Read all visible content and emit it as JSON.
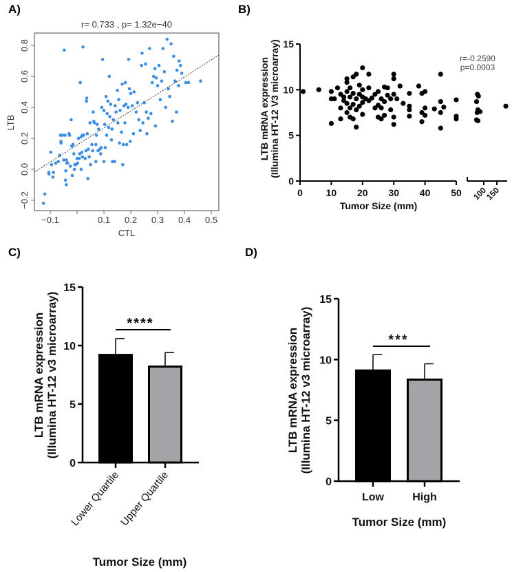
{
  "chart_data": [
    {
      "panel": "A)",
      "type": "scatter",
      "title": "r= 0.733 , p= 1.32e−40",
      "xlabel": "CTL",
      "ylabel": "LTB",
      "xlim": [
        -0.159,
        0.528
      ],
      "ylim": [
        -0.267,
        0.88
      ],
      "x_ticks": [
        -0.1,
        0,
        0.1,
        0.2,
        0.3,
        0.4,
        0.5
      ],
      "x_tick_labels": [
        "−0.1",
        "",
        "0.1",
        "0.2",
        "0.3",
        "0.4",
        "0.5"
      ],
      "y_ticks": [
        -0.2,
        0,
        0.2,
        0.4,
        0.6,
        0.8
      ],
      "y_tick_labels": [
        "−0.2",
        "0.0",
        "0.2",
        "0.4",
        "0.6",
        "0.8"
      ],
      "point_color": "#3a8ee6",
      "fit_line": {
        "intercept": 0.157,
        "slope": 1.1,
        "style": "dotted"
      },
      "grid": false,
      "points": [
        [
          -0.125,
          -0.22
        ],
        [
          -0.12,
          -0.16
        ],
        [
          -0.105,
          -0.03
        ],
        [
          -0.105,
          -0.02
        ],
        [
          -0.098,
          0.11
        ],
        [
          -0.095,
          0.03
        ],
        [
          -0.09,
          -0.05
        ],
        [
          -0.088,
          -0.02
        ],
        [
          -0.08,
          0.04
        ],
        [
          -0.07,
          0.05
        ],
        [
          -0.065,
          0.09
        ],
        [
          -0.062,
          0.22
        ],
        [
          -0.06,
          0.18
        ],
        [
          -0.06,
          0.17
        ],
        [
          -0.055,
          0.22
        ],
        [
          -0.05,
          0.06
        ],
        [
          -0.048,
          0.77
        ],
        [
          -0.045,
          0.22
        ],
        [
          -0.043,
          -0.07
        ],
        [
          -0.042,
          -0.01
        ],
        [
          -0.04,
          -0.1
        ],
        [
          -0.04,
          0.06
        ],
        [
          -0.038,
          0.04
        ],
        [
          -0.035,
          0.04
        ],
        [
          -0.03,
          0.23
        ],
        [
          -0.028,
          0.22
        ],
        [
          -0.025,
          0.02
        ],
        [
          -0.022,
          0.32
        ],
        [
          -0.02,
          0.15
        ],
        [
          -0.018,
          -0.04
        ],
        [
          -0.015,
          0.16
        ],
        [
          -0.012,
          0.1
        ],
        [
          -0.01,
          0.0
        ],
        [
          -0.008,
          0.03
        ],
        [
          -0.005,
          0.03
        ],
        [
          0,
          0.07
        ],
        [
          0.002,
          0.04
        ],
        [
          0.005,
          0.2
        ],
        [
          0.008,
          0.07
        ],
        [
          0.01,
          0.1
        ],
        [
          0.012,
          0.56
        ],
        [
          0.015,
          0.21
        ],
        [
          0.015,
          0.0
        ],
        [
          0.018,
          0.11
        ],
        [
          0.02,
          0.08
        ],
        [
          0.02,
          0.22
        ],
        [
          0.022,
          0.79
        ],
        [
          0.025,
          0.22
        ],
        [
          0.03,
          0.07
        ],
        [
          0.033,
          0.12
        ],
        [
          0.035,
          0.44
        ],
        [
          0.036,
          0.46
        ],
        [
          0.038,
          0.23
        ],
        [
          0.04,
          -0.06
        ],
        [
          0.042,
          0.13
        ],
        [
          0.045,
          0.08
        ],
        [
          0.048,
          0.3
        ],
        [
          0.05,
          0.03
        ],
        [
          0.055,
          0.16
        ],
        [
          0.058,
          0.12
        ],
        [
          0.06,
          0.37
        ],
        [
          0.062,
          0.31
        ],
        [
          0.065,
          0.3
        ],
        [
          0.07,
          0.16
        ],
        [
          0.07,
          0.05
        ],
        [
          0.072,
          0.22
        ],
        [
          0.075,
          0.29
        ],
        [
          0.078,
          0.12
        ],
        [
          0.08,
          0.26
        ],
        [
          0.085,
          0.13
        ],
        [
          0.088,
          0.1
        ],
        [
          0.09,
          0.14
        ],
        [
          0.092,
          0.4
        ],
        [
          0.095,
          0.71
        ],
        [
          0.1,
          0.38
        ],
        [
          0.1,
          0.05
        ],
        [
          0.103,
          0.29
        ],
        [
          0.105,
          0.14
        ],
        [
          0.108,
          0.47
        ],
        [
          0.11,
          0.22
        ],
        [
          0.112,
          0.36
        ],
        [
          0.115,
          0.44
        ],
        [
          0.118,
          0.27
        ],
        [
          0.12,
          0.6
        ],
        [
          0.122,
          0.34
        ],
        [
          0.125,
          0.42
        ],
        [
          0.128,
          0.19
        ],
        [
          0.13,
          0.26
        ],
        [
          0.132,
          0.05
        ],
        [
          0.135,
          0.32
        ],
        [
          0.14,
          0.05
        ],
        [
          0.142,
          0.41
        ],
        [
          0.145,
          0.37
        ],
        [
          0.15,
          0.51
        ],
        [
          0.152,
          0.3
        ],
        [
          0.155,
          0.45
        ],
        [
          0.158,
          0.17
        ],
        [
          0.16,
          0.38
        ],
        [
          0.165,
          0.24
        ],
        [
          0.168,
          0.55
        ],
        [
          0.17,
          0.03
        ],
        [
          0.172,
          0.16
        ],
        [
          0.175,
          0.41
        ],
        [
          0.178,
          0.3
        ],
        [
          0.18,
          0.56
        ],
        [
          0.182,
          0.42
        ],
        [
          0.185,
          0.16
        ],
        [
          0.19,
          0.4
        ],
        [
          0.192,
          0.71
        ],
        [
          0.195,
          0.52
        ],
        [
          0.198,
          0.18
        ],
        [
          0.2,
          0.49
        ],
        [
          0.205,
          0.41
        ],
        [
          0.21,
          0.23
        ],
        [
          0.212,
          0.5
        ],
        [
          0.22,
          0.37
        ],
        [
          0.225,
          0.43
        ],
        [
          0.23,
          0.32
        ],
        [
          0.235,
          0.25
        ],
        [
          0.24,
          0.67
        ],
        [
          0.242,
          0.75
        ],
        [
          0.245,
          0.3
        ],
        [
          0.25,
          0.43
        ],
        [
          0.255,
          0.68
        ],
        [
          0.258,
          0.37
        ],
        [
          0.26,
          0.23
        ],
        [
          0.265,
          0.33
        ],
        [
          0.27,
          0.78
        ],
        [
          0.275,
          0.36
        ],
        [
          0.28,
          0.56
        ],
        [
          0.285,
          0.6
        ],
        [
          0.29,
          0.65
        ],
        [
          0.292,
          0.28
        ],
        [
          0.295,
          0.59
        ],
        [
          0.3,
          0.54
        ],
        [
          0.305,
          0.67
        ],
        [
          0.31,
          0.45
        ],
        [
          0.315,
          0.57
        ],
        [
          0.32,
          0.78
        ],
        [
          0.325,
          0.63
        ],
        [
          0.33,
          0.4
        ],
        [
          0.335,
          0.84
        ],
        [
          0.34,
          0.52
        ],
        [
          0.345,
          0.47
        ],
        [
          0.35,
          0.81
        ],
        [
          0.355,
          0.31
        ],
        [
          0.36,
          0.73
        ],
        [
          0.365,
          0.57
        ],
        [
          0.37,
          0.37
        ],
        [
          0.372,
          0.64
        ],
        [
          0.378,
          0.54
        ],
        [
          0.38,
          0.7
        ],
        [
          0.385,
          0.67
        ],
        [
          0.39,
          0.62
        ],
        [
          0.405,
          0.56
        ],
        [
          0.415,
          0.56
        ],
        [
          0.46,
          0.57
        ]
      ]
    },
    {
      "panel": "B)",
      "type": "scatter",
      "annotation": [
        "r=-0.2590",
        "p=0.0003"
      ],
      "xlabel": "Tumor Size (mm)",
      "ylabel": [
        "LTB mRNA expression",
        "(Illumina HT-12 V3 microarray)"
      ],
      "ylim": [
        0,
        15
      ],
      "x_axis_break": {
        "segment1": [
          0,
          50
        ],
        "segment2": [
          40,
          190
        ]
      },
      "x_ticks_segment1": [
        0,
        10,
        20,
        30,
        40,
        50
      ],
      "x_tick_labels_segment1": [
        "0",
        "10",
        "20",
        "30",
        "40",
        "50"
      ],
      "x_ticks_segment2": [
        100,
        150
      ],
      "x_tick_labels_segment2": [
        "100",
        "150"
      ],
      "y_ticks": [
        0,
        5,
        10,
        15
      ],
      "y_tick_labels": [
        "0",
        "5",
        "10",
        "15"
      ],
      "point_color": "#000000",
      "points": [
        [
          1,
          9.8
        ],
        [
          6,
          10.0
        ],
        [
          10,
          6.3
        ],
        [
          10,
          9.0
        ],
        [
          10,
          9.8
        ],
        [
          11,
          9.0
        ],
        [
          12,
          10.2
        ],
        [
          13,
          8.0
        ],
        [
          13,
          6.8
        ],
        [
          13,
          9.5
        ],
        [
          14,
          9.2
        ],
        [
          14,
          8.8
        ],
        [
          15,
          11.2
        ],
        [
          15,
          10.8
        ],
        [
          15,
          9.8
        ],
        [
          15,
          8.5
        ],
        [
          15,
          7.5
        ],
        [
          16,
          10.2
        ],
        [
          16,
          9.2
        ],
        [
          16,
          8.0
        ],
        [
          16,
          7.0
        ],
        [
          17,
          9.6
        ],
        [
          17,
          8.4
        ],
        [
          17,
          11.4
        ],
        [
          17,
          6.8
        ],
        [
          18,
          11.7
        ],
        [
          18,
          9.0
        ],
        [
          18,
          7.8
        ],
        [
          18,
          5.9
        ],
        [
          19,
          10.5
        ],
        [
          19,
          8.2
        ],
        [
          19,
          9.5
        ],
        [
          20,
          12.4
        ],
        [
          20,
          10.0
        ],
        [
          20,
          9.2
        ],
        [
          20,
          8.6
        ],
        [
          20,
          7.3
        ],
        [
          21,
          9.0
        ],
        [
          22,
          11.7
        ],
        [
          22,
          10.2
        ],
        [
          22,
          8.8
        ],
        [
          23,
          9.1
        ],
        [
          24,
          8.0
        ],
        [
          24,
          9.5
        ],
        [
          25,
          9.8
        ],
        [
          25,
          8.3
        ],
        [
          25,
          7.0
        ],
        [
          26,
          8.0
        ],
        [
          26,
          6.8
        ],
        [
          26,
          9.0
        ],
        [
          27,
          10.3
        ],
        [
          27,
          8.7
        ],
        [
          27,
          7.2
        ],
        [
          28,
          10.2
        ],
        [
          28,
          9.4
        ],
        [
          29,
          7.8
        ],
        [
          29,
          9.0
        ],
        [
          30,
          11.7
        ],
        [
          30,
          11.2
        ],
        [
          30,
          9.5
        ],
        [
          30,
          7.0
        ],
        [
          30,
          6.2
        ],
        [
          31,
          9.0
        ],
        [
          32,
          10.4
        ],
        [
          33,
          8.5
        ],
        [
          35,
          9.6
        ],
        [
          35,
          8.2
        ],
        [
          35,
          7.8
        ],
        [
          35,
          7.1
        ],
        [
          38,
          10.4
        ],
        [
          39,
          9.6
        ],
        [
          39,
          6.5
        ],
        [
          39,
          7.5
        ],
        [
          40,
          9.8
        ],
        [
          40,
          8.0
        ],
        [
          40,
          7.2
        ],
        [
          43,
          7.9
        ],
        [
          45,
          11.7
        ],
        [
          45,
          8.7
        ],
        [
          45,
          7.5
        ],
        [
          45,
          5.8
        ],
        [
          46,
          8.1
        ],
        [
          50,
          8.9
        ],
        [
          50,
          7.1
        ],
        [
          50,
          6.8
        ],
        [
          75,
          8.7
        ],
        [
          75,
          6.7
        ],
        [
          77,
          7.5
        ],
        [
          78,
          9.5
        ],
        [
          80,
          6.6
        ],
        [
          80,
          7.8
        ],
        [
          82,
          9.3
        ],
        [
          88,
          7.6
        ],
        [
          185,
          8.2
        ]
      ]
    },
    {
      "panel": "C)",
      "type": "bar",
      "categories": [
        "Lower Quartile",
        "Upper Quartile"
      ],
      "values": [
        9.2,
        8.2
      ],
      "error_upper": [
        10.6,
        9.4
      ],
      "colors": [
        "#000000",
        "#a3a3a8"
      ],
      "significance": "****",
      "xlabel": "Tumor Size (mm)",
      "ylabel": [
        "LTB mRNA expression",
        "(Illumina HT-12 v3 microarray)"
      ],
      "ylim": [
        0,
        15
      ],
      "y_ticks": [
        0,
        5,
        10,
        15
      ],
      "y_tick_labels": [
        "0",
        "5",
        "10",
        "15"
      ]
    },
    {
      "panel": "D)",
      "type": "bar",
      "categories": [
        "Low",
        "High"
      ],
      "values": [
        9.1,
        8.35
      ],
      "error_upper": [
        10.4,
        9.65
      ],
      "colors": [
        "#000000",
        "#a3a3a8"
      ],
      "significance": "***",
      "xlabel": "Tumor Size (mm)",
      "ylabel": [
        "LTB mRNA expression",
        "(Illumina HT-12 v3 microarray)"
      ],
      "ylim": [
        0,
        15
      ],
      "y_ticks": [
        0,
        5,
        10,
        15
      ],
      "y_tick_labels": [
        "0",
        "5",
        "10",
        "15"
      ]
    }
  ]
}
